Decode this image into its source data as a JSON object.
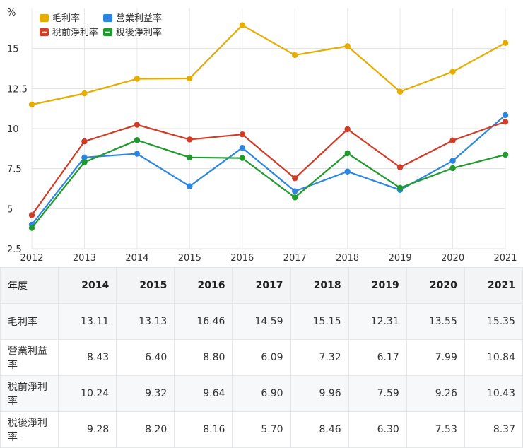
{
  "chart_data": {
    "type": "line",
    "unit": "%",
    "categories": [
      "2012",
      "2013",
      "2014",
      "2015",
      "2016",
      "2017",
      "2018",
      "2019",
      "2020",
      "2021"
    ],
    "ylim": [
      2.5,
      17.5
    ],
    "yticks": [
      "2.5",
      "5",
      "7.5",
      "10",
      "12.5",
      "15"
    ],
    "grid": true,
    "legend_position": "top-left",
    "series": [
      {
        "name": "毛利率",
        "color": "#e6ac00",
        "values": [
          11.5,
          12.2,
          13.11,
          13.13,
          16.46,
          14.59,
          15.15,
          12.31,
          13.55,
          15.35
        ]
      },
      {
        "name": "營業利益率",
        "color": "#2a86e0",
        "values": [
          4.0,
          8.2,
          8.43,
          6.4,
          8.8,
          6.09,
          7.32,
          6.17,
          7.99,
          10.84
        ]
      },
      {
        "name": "稅前淨利率",
        "color": "#d23b26",
        "values": [
          4.6,
          9.2,
          10.24,
          9.32,
          9.64,
          6.9,
          9.96,
          7.59,
          9.26,
          10.43
        ]
      },
      {
        "name": "稅後淨利率",
        "color": "#1f9a2c",
        "values": [
          3.8,
          7.9,
          9.28,
          8.2,
          8.16,
          5.7,
          8.46,
          6.3,
          7.53,
          8.37
        ]
      }
    ]
  },
  "table": {
    "corner": "年度",
    "columns": [
      "2014",
      "2015",
      "2016",
      "2017",
      "2018",
      "2019",
      "2020",
      "2021"
    ],
    "rows": [
      {
        "label": "毛利率",
        "values": [
          "13.11",
          "13.13",
          "16.46",
          "14.59",
          "15.15",
          "12.31",
          "13.55",
          "15.35"
        ]
      },
      {
        "label": "營業利益率",
        "values": [
          "8.43",
          "6.40",
          "8.80",
          "6.09",
          "7.32",
          "6.17",
          "7.99",
          "10.84"
        ]
      },
      {
        "label": "稅前淨利率",
        "values": [
          "10.24",
          "9.32",
          "9.64",
          "6.90",
          "9.96",
          "7.59",
          "9.26",
          "10.43"
        ]
      },
      {
        "label": "稅後淨利率",
        "values": [
          "9.28",
          "8.20",
          "8.16",
          "5.70",
          "8.46",
          "6.30",
          "7.53",
          "8.37"
        ]
      }
    ]
  }
}
